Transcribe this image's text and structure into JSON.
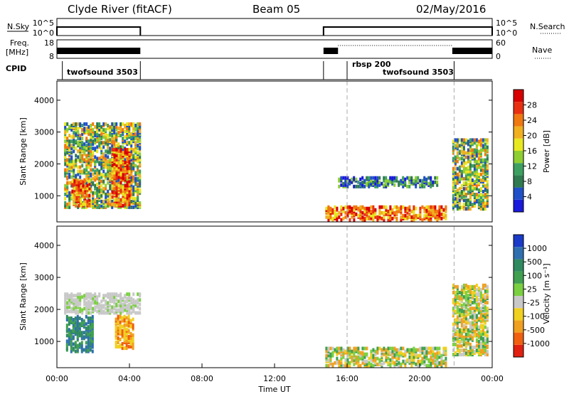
{
  "header": {
    "station": "Clyde River (fitACF)",
    "beam": "Beam 05",
    "date": "02/May/2016"
  },
  "panel_labels": {
    "nsky": "N.Sky",
    "nsearch": "N.Search",
    "freq_line1": "Freq.",
    "freq_line2": "[MHz]",
    "nave": "Nave",
    "cpid": "CPID"
  },
  "cpid_labels": {
    "a": "twofsound 3503",
    "b": "rbsp 200",
    "c": "twofsound 3503"
  },
  "axes": {
    "xlabel": "Time UT",
    "ylabel_top": "Slant Range [km]",
    "ylabel_bottom": "Slant Range [km]"
  },
  "colorbars": {
    "power": {
      "label": "Power [dB]",
      "ticks": [
        "4",
        "8",
        "12",
        "16",
        "20",
        "24",
        "28"
      ],
      "colors": [
        "#1a1adc",
        "#2050c8",
        "#2f7a50",
        "#3da060",
        "#8fce30",
        "#e8e820",
        "#f0b020",
        "#f07810",
        "#e83010",
        "#d80000"
      ]
    },
    "velocity": {
      "label": "Velocity [m s⁻¹]",
      "ticks": [
        "1000",
        "500",
        "100",
        "25",
        "-25",
        "-100",
        "-500",
        "-1000"
      ],
      "colors": [
        "#1a3ac8",
        "#2f6fb0",
        "#2f8a60",
        "#40a050",
        "#7ad040",
        "#c8c8c8",
        "#f0d020",
        "#f0a020",
        "#f06010",
        "#e02010"
      ]
    }
  },
  "chart_data": [
    {
      "type": "line",
      "title": "N.Sky / N.Search",
      "y_ticks_left": [
        "10^5",
        "10^0"
      ],
      "y_ticks_right": [
        "10^5",
        "10^0"
      ],
      "segments": [
        [
          0.0,
          4.6
        ],
        [
          14.7,
          24.0
        ]
      ],
      "level": "10^3"
    },
    {
      "type": "line",
      "title": "Freq / Nave",
      "y_ticks_left": [
        "18",
        "8"
      ],
      "y_ticks_right": [
        "60",
        "0"
      ],
      "freq_segments": [
        [
          0.0,
          4.6
        ],
        [
          14.7,
          24.0
        ]
      ],
      "freq_mhz": 11,
      "nave_segment": [
        15.5,
        21.8
      ],
      "nave": 45
    },
    {
      "type": "heatmap",
      "title": "Power",
      "xlabel": "Time UT",
      "ylabel": "Slant Range [km]",
      "xlim": [
        0,
        24
      ],
      "ylim": [
        180,
        4600
      ],
      "x_ticks": [
        "00:00",
        "04:00",
        "08:00",
        "12:00",
        "16:00",
        "20:00",
        "00:00"
      ],
      "y_ticks": [
        1000,
        2000,
        3000,
        4000
      ],
      "cpid_change_times": [
        16.0,
        21.9
      ],
      "scatter_regions": [
        {
          "t0": 0.4,
          "t1": 4.6,
          "r0": 650,
          "r1": 3300,
          "level": "mid"
        },
        {
          "t0": 0.8,
          "t1": 1.8,
          "r0": 700,
          "r1": 1500,
          "level": "high"
        },
        {
          "t0": 3.0,
          "t1": 4.0,
          "r0": 700,
          "r1": 2500,
          "level": "high"
        },
        {
          "t0": 14.8,
          "t1": 21.5,
          "r0": 250,
          "r1": 700,
          "level": "high"
        },
        {
          "t0": 15.5,
          "t1": 21.0,
          "r0": 1300,
          "r1": 1600,
          "level": "low"
        },
        {
          "t0": 21.8,
          "t1": 23.7,
          "r0": 600,
          "r1": 2800,
          "level": "mid"
        }
      ]
    },
    {
      "type": "heatmap",
      "title": "Velocity",
      "xlabel": "Time UT",
      "ylabel": "Slant Range [km]",
      "xlim": [
        0,
        24
      ],
      "ylim": [
        180,
        4600
      ],
      "x_ticks": [
        "00:00",
        "04:00",
        "08:00",
        "12:00",
        "16:00",
        "20:00",
        "00:00"
      ],
      "y_ticks": [
        1000,
        2000,
        3000,
        4000
      ],
      "cpid_change_times": [
        16.0,
        21.9
      ],
      "scatter_regions": [
        {
          "t0": 0.4,
          "t1": 4.6,
          "r0": 1900,
          "r1": 2500,
          "level": "ground"
        },
        {
          "t0": 0.5,
          "t1": 2.0,
          "r0": 700,
          "r1": 1800,
          "level": "positive"
        },
        {
          "t0": 3.2,
          "t1": 4.2,
          "r0": 800,
          "r1": 1800,
          "level": "negative"
        },
        {
          "t0": 14.8,
          "t1": 21.5,
          "r0": 250,
          "r1": 800,
          "level": "mixed"
        },
        {
          "t0": 21.8,
          "t1": 23.7,
          "r0": 600,
          "r1": 2800,
          "level": "mixed"
        }
      ]
    }
  ]
}
